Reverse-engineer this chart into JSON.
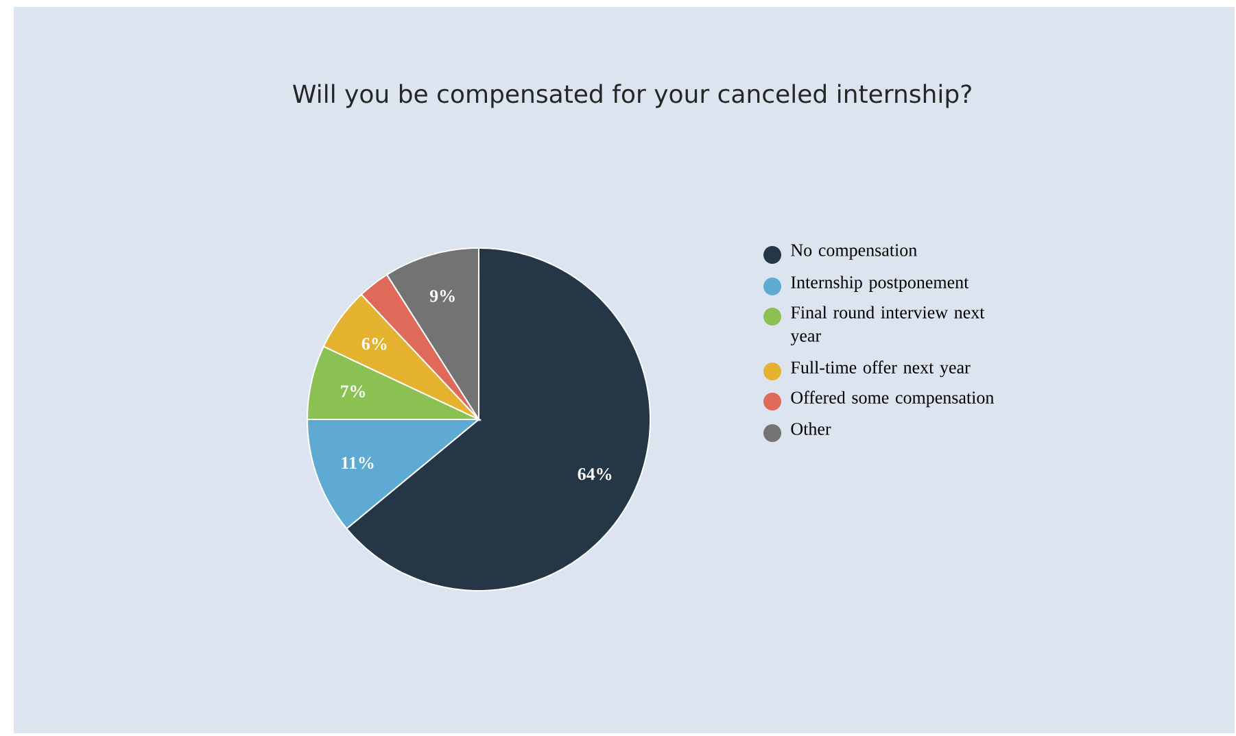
{
  "chart_data": {
    "type": "pie",
    "title": "Will you be compensated for your canceled internship?",
    "categories": [
      "No compensation",
      "Internship postponement",
      "Final round interview next year",
      "Full-time offer next year",
      "Offered some compensation",
      "Other"
    ],
    "values": [
      64,
      11,
      7,
      6,
      3,
      9
    ],
    "colors": [
      "#253746",
      "#5eaad2",
      "#8bc152",
      "#e5b22f",
      "#e06a59",
      "#737373"
    ],
    "value_labels": [
      "64%",
      "11%",
      "7%",
      "6%",
      null,
      "9%"
    ],
    "legend": "right"
  }
}
